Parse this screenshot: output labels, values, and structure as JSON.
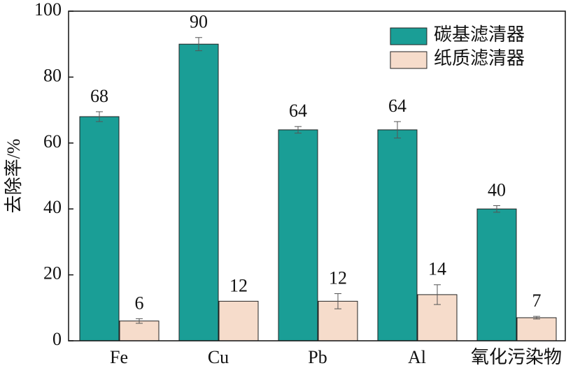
{
  "chart_data": {
    "type": "bar",
    "y_label": "去除率/%",
    "categories": [
      "Fe",
      "Cu",
      "Pb",
      "Al",
      "氧化污染物"
    ],
    "series": [
      {
        "name": "碳基滤清器",
        "color": "#1a9e96",
        "values": [
          68,
          90,
          64,
          64,
          40
        ],
        "errors": [
          1.5,
          2,
          1,
          2.5,
          1
        ]
      },
      {
        "name": "纸质滤清器",
        "color": "#f6dccb",
        "values": [
          6,
          12,
          12,
          14,
          7
        ],
        "errors": [
          0.7,
          0,
          2.3,
          3,
          0.4
        ]
      }
    ],
    "ylim": [
      0,
      100
    ],
    "yticks": [
      0,
      20,
      40,
      60,
      80,
      100
    ],
    "legend": "top-right"
  }
}
